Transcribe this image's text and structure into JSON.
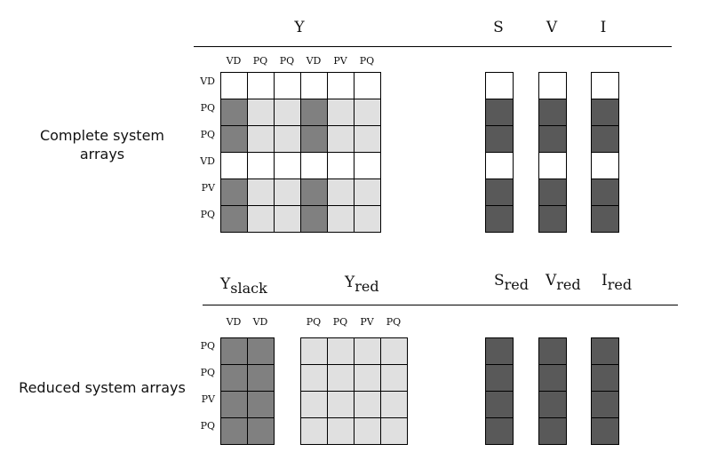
{
  "colors": {
    "gen": "#808080",
    "load": "#e0e0e0",
    "vector": "#595959",
    "empty": "#ffffff"
  },
  "sections": {
    "complete": {
      "label": "Complete system arrays",
      "headers": {
        "Y": "Y",
        "S": "S",
        "V": "V",
        "I": "I"
      },
      "col_labels": [
        "VD",
        "PQ",
        "PQ",
        "VD",
        "PV",
        "PQ"
      ],
      "row_labels": [
        "VD",
        "PQ",
        "PQ",
        "VD",
        "PV",
        "PQ"
      ],
      "matrix_cells": [
        [
          "empty",
          "empty",
          "empty",
          "empty",
          "empty",
          "empty"
        ],
        [
          "gen",
          "load",
          "load",
          "gen",
          "load",
          "load"
        ],
        [
          "gen",
          "load",
          "load",
          "gen",
          "load",
          "load"
        ],
        [
          "empty",
          "empty",
          "empty",
          "empty",
          "empty",
          "empty"
        ],
        [
          "gen",
          "load",
          "load",
          "gen",
          "load",
          "load"
        ],
        [
          "gen",
          "load",
          "load",
          "gen",
          "load",
          "load"
        ]
      ],
      "vector_cells": [
        "empty",
        "vector",
        "vector",
        "empty",
        "vector",
        "vector"
      ]
    },
    "reduced": {
      "label": "Reduced system arrays",
      "headers": {
        "Yslack_base": "Y",
        "Yslack_sub": "slack",
        "Yred_base": "Y",
        "Yred_sub": "red",
        "S_base": "S",
        "S_sub": "red",
        "V_base": "V",
        "V_sub": "red",
        "I_base": "I",
        "I_sub": "red"
      },
      "slack_col_labels": [
        "VD",
        "VD"
      ],
      "red_col_labels": [
        "PQ",
        "PQ",
        "PV",
        "PQ"
      ],
      "row_labels": [
        "PQ",
        "PQ",
        "PV",
        "PQ"
      ],
      "slack_cells": [
        [
          "gen",
          "gen"
        ],
        [
          "gen",
          "gen"
        ],
        [
          "gen",
          "gen"
        ],
        [
          "gen",
          "gen"
        ]
      ],
      "red_cells": [
        [
          "load",
          "load",
          "load",
          "load"
        ],
        [
          "load",
          "load",
          "load",
          "load"
        ],
        [
          "load",
          "load",
          "load",
          "load"
        ],
        [
          "load",
          "load",
          "load",
          "load"
        ]
      ],
      "vector_cells": [
        "vector",
        "vector",
        "vector",
        "vector"
      ]
    }
  }
}
